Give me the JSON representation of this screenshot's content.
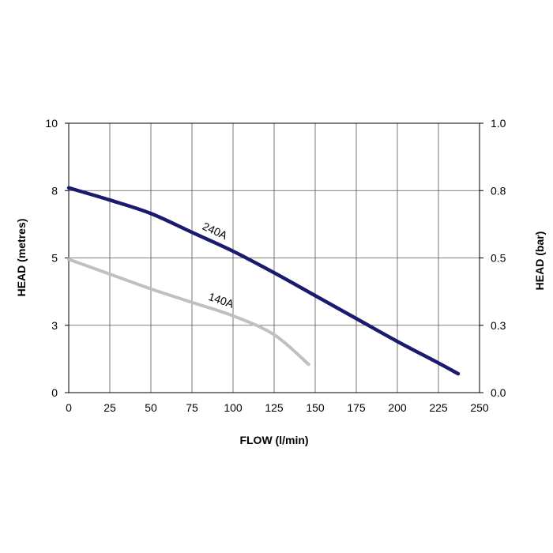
{
  "chart_data": {
    "type": "line",
    "xlabel": "FLOW (l/min)",
    "ylabel": "HEAD (metres)",
    "y2label": "HEAD (bar)",
    "xlim": [
      0,
      250
    ],
    "ylim": [
      0,
      10
    ],
    "y2lim": [
      0,
      1.0
    ],
    "grid": true,
    "x_ticks": [
      "0",
      "25",
      "50",
      "75",
      "100",
      "125",
      "150",
      "175",
      "200",
      "225",
      "250"
    ],
    "y_ticks": [
      "0",
      "3",
      "5",
      "8",
      "10"
    ],
    "y_tick_values": [
      0,
      2.5,
      5,
      7.5,
      10
    ],
    "y2_ticks": [
      "0.0",
      "0.3",
      "0.5",
      "0.8",
      "1.0"
    ],
    "y2_tick_values": [
      0,
      0.25,
      0.5,
      0.75,
      1.0
    ],
    "series": [
      {
        "name": "240A",
        "color": "#1a1a6e",
        "x": [
          0,
          25,
          50,
          75,
          100,
          125,
          150,
          175,
          200,
          225,
          237
        ],
        "y": [
          7.6,
          7.15,
          6.65,
          5.95,
          5.25,
          4.45,
          3.6,
          2.75,
          1.9,
          1.1,
          0.7
        ]
      },
      {
        "name": "140A",
        "color": "#c0c0c0",
        "x": [
          0,
          25,
          50,
          75,
          100,
          125,
          146
        ],
        "y": [
          4.95,
          4.4,
          3.85,
          3.35,
          2.85,
          2.15,
          1.05
        ]
      }
    ]
  }
}
